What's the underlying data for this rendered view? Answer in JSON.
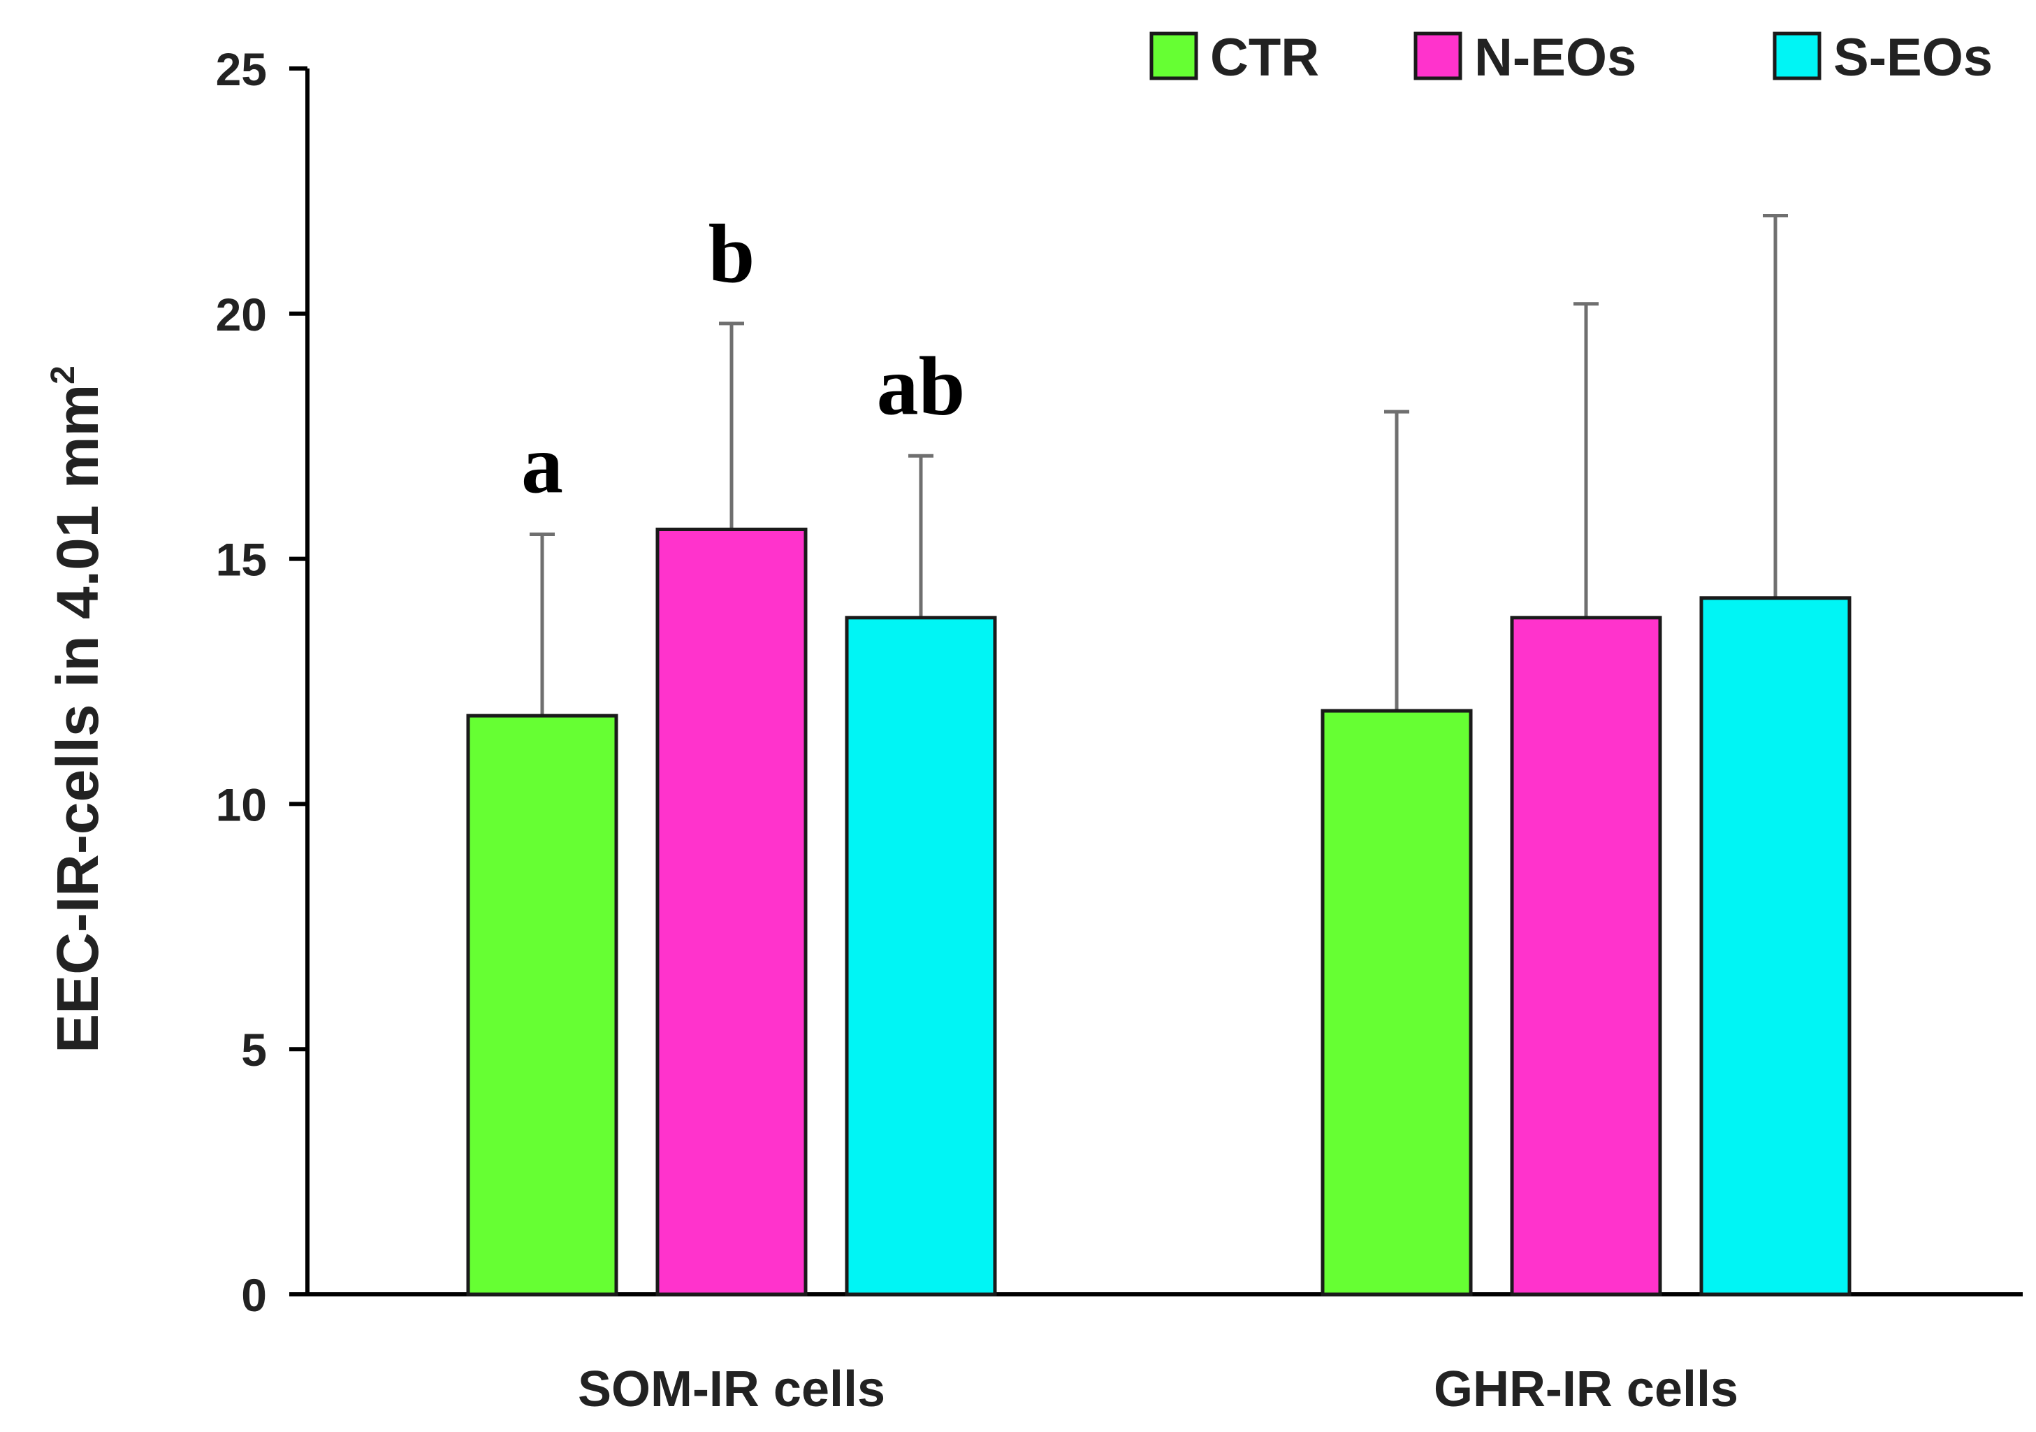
{
  "chart_data": {
    "type": "bar",
    "title": "",
    "xlabel": "",
    "ylabel": "EEC-IR-cells in 4.01 mm",
    "ylabel_superscript": "2",
    "ylim": [
      0,
      25
    ],
    "yticks": [
      0,
      5,
      10,
      15,
      20,
      25
    ],
    "grid": false,
    "legend_position": "top-right",
    "categories": [
      "SOM-IR cells",
      "GHR-IR cells"
    ],
    "series": [
      {
        "name": "CTR",
        "color": "#66ff33",
        "values": [
          11.8,
          11.9
        ],
        "errors": [
          3.7,
          6.1
        ],
        "sig_labels": [
          "a",
          ""
        ]
      },
      {
        "name": "N-EOs",
        "color": "#ff33cc",
        "values": [
          15.6,
          13.8
        ],
        "errors": [
          4.2,
          6.4
        ],
        "sig_labels": [
          "b",
          ""
        ]
      },
      {
        "name": "S-EOs",
        "color": "#00f5f5",
        "values": [
          13.8,
          14.2
        ],
        "errors": [
          3.3,
          7.8
        ],
        "sig_labels": [
          "ab",
          ""
        ]
      }
    ]
  }
}
